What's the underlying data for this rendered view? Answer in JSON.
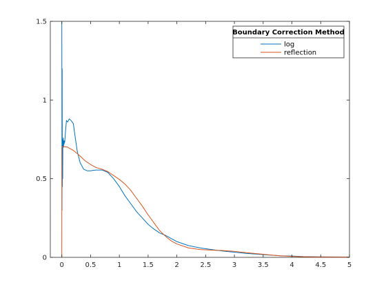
{
  "chart_data": {
    "type": "line",
    "title": "",
    "xlabel": "",
    "ylabel": "",
    "xlim": [
      -0.2,
      5
    ],
    "ylim": [
      0,
      1.5
    ],
    "x_ticks": [
      0,
      0.5,
      1,
      1.5,
      2,
      2.5,
      3,
      3.5,
      4,
      4.5,
      5
    ],
    "x_tick_labels": [
      "0",
      "0.5",
      "1",
      "1.5",
      "2",
      "2.5",
      "3",
      "3.5",
      "4",
      "4.5",
      "5"
    ],
    "y_ticks": [
      0,
      0.5,
      1,
      1.5
    ],
    "y_tick_labels": [
      "0",
      "0.5",
      "1",
      "1.5"
    ],
    "grid": false,
    "box": true,
    "legend": {
      "title": "Boundary Correction Method",
      "location": "top-right",
      "entries": [
        "log",
        "reflection"
      ]
    },
    "series": [
      {
        "name": "log",
        "color": "#0072BD",
        "x": [
          0,
          0.003,
          0.006,
          0.009,
          0.012,
          0.015,
          0.018,
          0.02,
          0.025,
          0.03,
          0.035,
          0.04,
          0.045,
          0.05,
          0.06,
          0.08,
          0.1,
          0.13,
          0.16,
          0.2,
          0.23,
          0.27,
          0.32,
          0.38,
          0.44,
          0.5,
          0.55,
          0.6,
          0.7,
          0.8,
          0.9,
          1.0,
          1.1,
          1.2,
          1.3,
          1.4,
          1.5,
          1.6,
          1.7,
          1.8,
          1.9,
          2.0,
          2.2,
          2.4,
          2.6,
          2.8,
          3.0,
          3.2,
          3.4,
          3.6,
          3.8,
          4.0,
          4.2,
          4.5,
          5.0
        ],
        "y": [
          1.5,
          0.3,
          1.2,
          0.45,
          0.75,
          0.5,
          0.72,
          0.7,
          0.76,
          0.7,
          0.74,
          0.72,
          0.74,
          0.73,
          0.78,
          0.87,
          0.86,
          0.88,
          0.87,
          0.85,
          0.77,
          0.67,
          0.6,
          0.56,
          0.55,
          0.55,
          0.553,
          0.555,
          0.555,
          0.54,
          0.5,
          0.45,
          0.39,
          0.34,
          0.29,
          0.25,
          0.21,
          0.18,
          0.155,
          0.14,
          0.12,
          0.1,
          0.075,
          0.06,
          0.05,
          0.04,
          0.033,
          0.025,
          0.02,
          0.015,
          0.01,
          0.008,
          0.005,
          0.003,
          0.002
        ]
      },
      {
        "name": "reflection",
        "color": "#D95319",
        "x": [
          0,
          0.001,
          0.02,
          0.05,
          0.1,
          0.2,
          0.3,
          0.4,
          0.5,
          0.6,
          0.7,
          0.8,
          0.9,
          1.0,
          1.1,
          1.2,
          1.3,
          1.4,
          1.5,
          1.6,
          1.7,
          1.8,
          1.9,
          2.0,
          2.2,
          2.4,
          2.6,
          2.8,
          3.0,
          3.2,
          3.4,
          3.6,
          3.8,
          4.0,
          4.2,
          4.5,
          5.0
        ],
        "y": [
          0,
          0.7,
          0.705,
          0.703,
          0.7,
          0.68,
          0.65,
          0.615,
          0.59,
          0.57,
          0.56,
          0.545,
          0.52,
          0.495,
          0.465,
          0.425,
          0.375,
          0.325,
          0.27,
          0.22,
          0.17,
          0.135,
          0.105,
          0.085,
          0.06,
          0.05,
          0.046,
          0.043,
          0.038,
          0.03,
          0.023,
          0.016,
          0.01,
          0.006,
          0.004,
          0.002,
          0.001
        ]
      }
    ]
  }
}
